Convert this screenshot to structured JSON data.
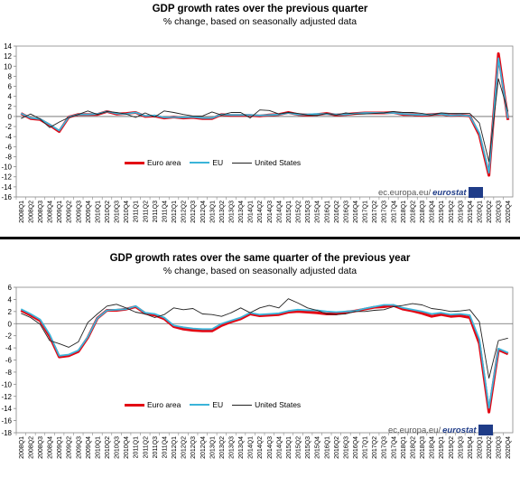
{
  "chart_data": [
    {
      "type": "line",
      "title": "GDP growth rates over the previous quarter",
      "subtitle": "% change, based on seasonally adjusted data",
      "ylim": [
        -16,
        14
      ],
      "yticks": [
        14,
        12,
        10,
        8,
        6,
        4,
        2,
        0,
        -2,
        -4,
        -6,
        -8,
        -10,
        -12,
        -14,
        -16
      ],
      "categories": [
        "2008Q1",
        "2008Q2",
        "2008Q3",
        "2008Q4",
        "2009Q1",
        "2009Q2",
        "2009Q3",
        "2009Q4",
        "2010Q1",
        "2010Q2",
        "2010Q3",
        "2010Q4",
        "2011Q1",
        "2011Q2",
        "2011Q3",
        "2011Q4",
        "2012Q1",
        "2012Q2",
        "2012Q3",
        "2012Q4",
        "2013Q1",
        "2013Q2",
        "2013Q3",
        "2013Q4",
        "2014Q1",
        "2014Q2",
        "2014Q3",
        "2014Q4",
        "2015Q1",
        "2015Q2",
        "2015Q3",
        "2015Q4",
        "2016Q1",
        "2016Q2",
        "2016Q3",
        "2016Q4",
        "2017Q1",
        "2017Q2",
        "2017Q3",
        "2017Q4",
        "2018Q1",
        "2018Q2",
        "2018Q3",
        "2018Q4",
        "2019Q1",
        "2019Q2",
        "2019Q3",
        "2019Q4",
        "2020Q1",
        "2020Q2",
        "2020Q3",
        "2020Q4"
      ],
      "series": [
        {
          "name": "Euro area",
          "color": "#e30613",
          "values": [
            0.6,
            -0.4,
            -0.6,
            -1.7,
            -3.0,
            -0.1,
            0.4,
            0.4,
            0.4,
            1.0,
            0.5,
            0.6,
            0.8,
            0.0,
            0.1,
            -0.3,
            -0.1,
            -0.3,
            -0.2,
            -0.4,
            -0.4,
            0.4,
            0.2,
            0.2,
            0.2,
            0.1,
            0.3,
            0.4,
            0.8,
            0.4,
            0.3,
            0.4,
            0.6,
            0.3,
            0.4,
            0.6,
            0.7,
            0.7,
            0.7,
            0.8,
            0.4,
            0.4,
            0.2,
            0.4,
            0.5,
            0.2,
            0.3,
            0.1,
            -3.7,
            -11.7,
            12.5,
            -0.7
          ]
        },
        {
          "name": "EU",
          "color": "#3bb4d9",
          "values": [
            0.6,
            -0.3,
            -0.5,
            -1.6,
            -2.8,
            -0.1,
            0.4,
            0.4,
            0.5,
            1.0,
            0.6,
            0.5,
            0.8,
            0.1,
            0.2,
            -0.2,
            -0.1,
            -0.2,
            -0.1,
            -0.3,
            -0.3,
            0.4,
            0.3,
            0.3,
            0.3,
            0.2,
            0.3,
            0.4,
            0.7,
            0.4,
            0.4,
            0.5,
            0.5,
            0.4,
            0.4,
            0.6,
            0.7,
            0.7,
            0.7,
            0.7,
            0.5,
            0.4,
            0.3,
            0.4,
            0.5,
            0.2,
            0.3,
            0.1,
            -3.3,
            -11.2,
            11.6,
            -0.4
          ]
        },
        {
          "name": "United States",
          "color": "#222222",
          "values": [
            -0.4,
            0.5,
            -0.5,
            -2.2,
            -1.1,
            -0.2,
            0.4,
            1.1,
            0.4,
            1.0,
            0.8,
            0.5,
            -0.2,
            0.7,
            -0.1,
            1.1,
            0.8,
            0.4,
            0.1,
            0.1,
            0.9,
            0.3,
            0.8,
            0.8,
            -0.3,
            1.3,
            1.2,
            0.5,
            0.8,
            0.6,
            0.3,
            0.2,
            0.6,
            0.3,
            0.7,
            0.5,
            0.5,
            0.6,
            0.7,
            1.0,
            0.8,
            0.8,
            0.6,
            0.3,
            0.7,
            0.6,
            0.6,
            0.6,
            -1.3,
            -9.0,
            7.5,
            1.0
          ]
        }
      ],
      "legend": {
        "position": "bottom-left",
        "labels": [
          "Euro area",
          "EU",
          "United States"
        ]
      },
      "source": "ec.europa.eu/",
      "source_brand": "eurostat"
    },
    {
      "type": "line",
      "title": "GDP growth rates over the same quarter of the previous year",
      "subtitle": "% change, based on seasonally adjusted data",
      "ylim": [
        -18,
        6
      ],
      "yticks": [
        6,
        4,
        2,
        0,
        -2,
        -4,
        -6,
        -8,
        -10,
        -12,
        -14,
        -16,
        -18
      ],
      "categories": [
        "2008Q1",
        "2008Q2",
        "2008Q3",
        "2008Q4",
        "2009Q1",
        "2009Q2",
        "2009Q3",
        "2009Q4",
        "2010Q1",
        "2010Q2",
        "2010Q3",
        "2010Q4",
        "2011Q1",
        "2011Q2",
        "2011Q3",
        "2011Q4",
        "2012Q1",
        "2012Q2",
        "2012Q3",
        "2012Q4",
        "2013Q1",
        "2013Q2",
        "2013Q3",
        "2013Q4",
        "2014Q1",
        "2014Q2",
        "2014Q3",
        "2014Q4",
        "2015Q1",
        "2015Q2",
        "2015Q3",
        "2015Q4",
        "2016Q1",
        "2016Q2",
        "2016Q3",
        "2016Q4",
        "2017Q1",
        "2017Q2",
        "2017Q3",
        "2017Q4",
        "2018Q1",
        "2018Q2",
        "2018Q3",
        "2018Q4",
        "2019Q1",
        "2019Q2",
        "2019Q3",
        "2019Q4",
        "2020Q1",
        "2020Q2",
        "2020Q3",
        "2020Q4"
      ],
      "series": [
        {
          "name": "Euro area",
          "color": "#e30613",
          "values": [
            2.2,
            1.4,
            0.5,
            -2.1,
            -5.5,
            -5.3,
            -4.6,
            -2.3,
            0.9,
            2.2,
            2.2,
            2.4,
            2.8,
            1.7,
            1.4,
            0.8,
            -0.5,
            -0.9,
            -1.1,
            -1.2,
            -1.2,
            -0.3,
            0.3,
            0.8,
            1.6,
            1.3,
            1.4,
            1.5,
            1.9,
            2.0,
            1.9,
            1.8,
            1.6,
            1.6,
            1.9,
            2.1,
            2.4,
            2.7,
            2.8,
            3.0,
            2.4,
            2.1,
            1.7,
            1.2,
            1.5,
            1.2,
            1.3,
            1.0,
            -3.3,
            -14.6,
            -4.3,
            -5.0
          ]
        },
        {
          "name": "EU",
          "color": "#3bb4d9",
          "values": [
            2.4,
            1.6,
            0.7,
            -1.8,
            -5.3,
            -5.1,
            -4.4,
            -2.2,
            0.9,
            2.2,
            2.3,
            2.4,
            2.9,
            1.8,
            1.6,
            1.0,
            -0.3,
            -0.6,
            -0.8,
            -0.9,
            -0.9,
            0.0,
            0.5,
            1.0,
            1.8,
            1.5,
            1.6,
            1.7,
            2.1,
            2.3,
            2.2,
            2.2,
            2.0,
            1.9,
            2.0,
            2.1,
            2.5,
            2.8,
            3.1,
            3.1,
            2.6,
            2.3,
            2.0,
            1.6,
            1.8,
            1.5,
            1.6,
            1.4,
            -2.6,
            -13.9,
            -4.1,
            -4.8
          ]
        },
        {
          "name": "United States",
          "color": "#222222",
          "values": [
            1.7,
            1.0,
            -0.1,
            -2.8,
            -3.3,
            -3.9,
            -3.0,
            0.2,
            1.6,
            2.9,
            3.2,
            2.6,
            1.9,
            1.6,
            1.0,
            1.5,
            2.6,
            2.3,
            2.5,
            1.6,
            1.5,
            1.2,
            1.8,
            2.6,
            1.8,
            2.6,
            3.0,
            2.6,
            4.1,
            3.4,
            2.6,
            2.2,
            1.6,
            1.5,
            1.6,
            2.0,
            2.0,
            2.2,
            2.3,
            2.8,
            3.0,
            3.3,
            3.1,
            2.5,
            2.3,
            2.0,
            2.1,
            2.3,
            0.3,
            -9.0,
            -2.8,
            -2.4
          ]
        }
      ],
      "legend": {
        "position": "bottom-left",
        "labels": [
          "Euro area",
          "EU",
          "United States"
        ]
      },
      "source": "ec.europa.eu/",
      "source_brand": "eurostat"
    }
  ]
}
